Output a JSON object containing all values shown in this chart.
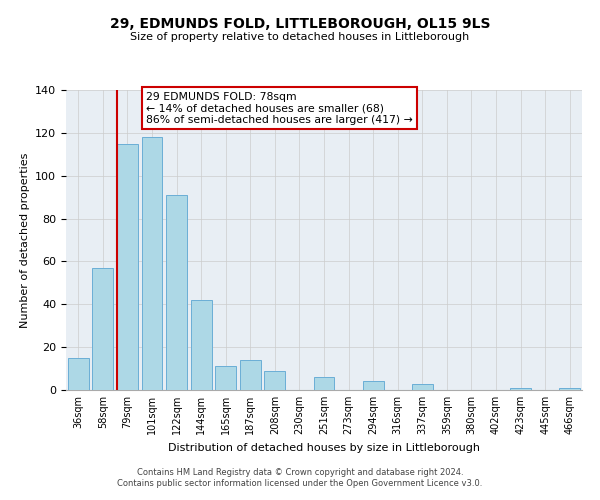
{
  "title": "29, EDMUNDS FOLD, LITTLEBOROUGH, OL15 9LS",
  "subtitle": "Size of property relative to detached houses in Littleborough",
  "xlabel": "Distribution of detached houses by size in Littleborough",
  "ylabel": "Number of detached properties",
  "categories": [
    "36sqm",
    "58sqm",
    "79sqm",
    "101sqm",
    "122sqm",
    "144sqm",
    "165sqm",
    "187sqm",
    "208sqm",
    "230sqm",
    "251sqm",
    "273sqm",
    "294sqm",
    "316sqm",
    "337sqm",
    "359sqm",
    "380sqm",
    "402sqm",
    "423sqm",
    "445sqm",
    "466sqm"
  ],
  "values": [
    15,
    57,
    115,
    118,
    91,
    42,
    11,
    14,
    9,
    0,
    6,
    0,
    4,
    0,
    3,
    0,
    0,
    0,
    1,
    0,
    1
  ],
  "bar_color": "#add8e6",
  "bar_edge_color": "#6baed6",
  "marker_line_color": "#cc0000",
  "annotation_line1": "29 EDMUNDS FOLD: 78sqm",
  "annotation_line2": "← 14% of detached houses are smaller (68)",
  "annotation_line3": "86% of semi-detached houses are larger (417) →",
  "ylim": [
    0,
    140
  ],
  "yticks": [
    0,
    20,
    40,
    60,
    80,
    100,
    120,
    140
  ],
  "footer_line1": "Contains HM Land Registry data © Crown copyright and database right 2024.",
  "footer_line2": "Contains public sector information licensed under the Open Government Licence v3.0.",
  "bg_color": "#e8eef4"
}
